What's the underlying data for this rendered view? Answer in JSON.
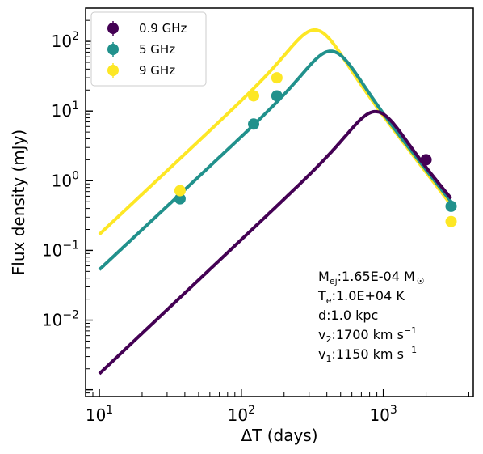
{
  "chart_data": {
    "type": "scatter",
    "xlabel": "ΔT (days)",
    "ylabel": "Flux density (mJy)",
    "xscale": "log",
    "yscale": "log",
    "xlim": [
      8,
      4300
    ],
    "ylim": [
      0.0008,
      300
    ],
    "xticks": [
      {
        "base": "10",
        "exp": "1",
        "value": 10
      },
      {
        "base": "10",
        "exp": "2",
        "value": 100
      },
      {
        "base": "10",
        "exp": "3",
        "value": 1000
      }
    ],
    "yticks": [
      {
        "base": "10",
        "exp": "−2",
        "value": 0.01
      },
      {
        "base": "10",
        "exp": "−1",
        "value": 0.1
      },
      {
        "base": "10",
        "exp": "0",
        "value": 1
      },
      {
        "base": "10",
        "exp": "1",
        "value": 10
      },
      {
        "base": "10",
        "exp": "2",
        "value": 100
      }
    ],
    "grid": false,
    "legend_position": "top-left",
    "series": [
      {
        "name": "0.9 GHz",
        "color": "#440154",
        "points": [
          {
            "x": 2000,
            "y": 2.0
          }
        ],
        "model": {
          "peak_x": 900,
          "peak_y": 9.8,
          "end_x": 3000,
          "end_y": 0.55,
          "start_y": 0.0017
        }
      },
      {
        "name": "5 GHz",
        "color": "#21918c",
        "points": [
          {
            "x": 37,
            "y": 0.55
          },
          {
            "x": 122,
            "y": 6.5
          },
          {
            "x": 178,
            "y": 16.5
          },
          {
            "x": 3000,
            "y": 0.43
          }
        ],
        "model": {
          "peak_x": 440,
          "peak_y": 72,
          "end_x": 3000,
          "end_y": 0.5,
          "start_y": 0.053
        }
      },
      {
        "name": "9 GHz",
        "color": "#fde725",
        "points": [
          {
            "x": 37,
            "y": 0.72
          },
          {
            "x": 122,
            "y": 16.5
          },
          {
            "x": 178,
            "y": 30
          },
          {
            "x": 3000,
            "y": 0.26
          }
        ],
        "model": {
          "peak_x": 340,
          "peak_y": 145,
          "end_x": 3000,
          "end_y": 0.45,
          "start_y": 0.17
        }
      }
    ],
    "annotations": [
      {
        "base": "M",
        "sub": "ej",
        "rest": ":1.65E-04 M",
        "sym": "☉",
        "sup": ""
      },
      {
        "base": "T",
        "sub": "e",
        "rest": ":1.0E+04 K",
        "sym": "",
        "sup": ""
      },
      {
        "base": "d",
        "sub": "",
        "rest": ":1.0 kpc",
        "sym": "",
        "sup": ""
      },
      {
        "base": "v",
        "sub": "2",
        "rest": ":1700 km s",
        "sym": "",
        "sup": "−1"
      },
      {
        "base": "v",
        "sub": "1",
        "rest": ":1150 km s",
        "sym": "",
        "sup": "−1"
      }
    ]
  }
}
